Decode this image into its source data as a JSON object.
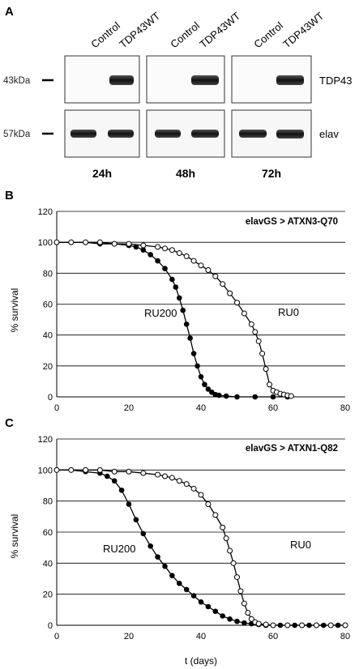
{
  "panel_a": {
    "letter": "A",
    "lane_labels": [
      "Control",
      "TDP43WT",
      "Control",
      "TDP43WT",
      "Control",
      "TDP43WT"
    ],
    "size_markers": [
      "43kDa",
      "57kDa"
    ],
    "proteins": [
      "TDP43",
      "elav"
    ],
    "timepoints": [
      "24h",
      "48h",
      "72h"
    ]
  },
  "chart_data": [
    {
      "type": "line",
      "panel": "B",
      "legend_text": "elavGS > ATXN3-Q70",
      "xlabel": "",
      "ylabel": "% survival",
      "xlim": [
        0,
        80
      ],
      "ylim": [
        0,
        120
      ],
      "xticks": [
        0,
        20,
        40,
        60,
        80
      ],
      "yticks": [
        0,
        20,
        40,
        60,
        80,
        100,
        120
      ],
      "grid": "horizontal",
      "series": [
        {
          "name": "RU200",
          "marker": "filled-circle",
          "points": [
            [
              0,
              100
            ],
            [
              4,
              100
            ],
            [
              8,
              100
            ],
            [
              12,
              99
            ],
            [
              16,
              99
            ],
            [
              20,
              98
            ],
            [
              22,
              97
            ],
            [
              24,
              95
            ],
            [
              26,
              92
            ],
            [
              28,
              88
            ],
            [
              30,
              83
            ],
            [
              32,
              76
            ],
            [
              33,
              71
            ],
            [
              34,
              64
            ],
            [
              35,
              56
            ],
            [
              36,
              47
            ],
            [
              37,
              38
            ],
            [
              38,
              28
            ],
            [
              39,
              20
            ],
            [
              40,
              13
            ],
            [
              41,
              8
            ],
            [
              42,
              5
            ],
            [
              43,
              3
            ],
            [
              44,
              1.5
            ],
            [
              45,
              1
            ],
            [
              47,
              0.5
            ],
            [
              50,
              0
            ],
            [
              55,
              0
            ],
            [
              60,
              0
            ],
            [
              64,
              0
            ]
          ]
        },
        {
          "name": "RU0",
          "marker": "open-circle",
          "points": [
            [
              0,
              100
            ],
            [
              4,
              100
            ],
            [
              8,
              100
            ],
            [
              12,
              100
            ],
            [
              16,
              99
            ],
            [
              20,
              99
            ],
            [
              24,
              98
            ],
            [
              28,
              97
            ],
            [
              30,
              96
            ],
            [
              32,
              95
            ],
            [
              34,
              93
            ],
            [
              36,
              91
            ],
            [
              38,
              88
            ],
            [
              40,
              85
            ],
            [
              42,
              82
            ],
            [
              44,
              78
            ],
            [
              46,
              73
            ],
            [
              48,
              67
            ],
            [
              50,
              61
            ],
            [
              52,
              54
            ],
            [
              54,
              47
            ],
            [
              55,
              42
            ],
            [
              56,
              36
            ],
            [
              57,
              28
            ],
            [
              58,
              18
            ],
            [
              59,
              8
            ],
            [
              60,
              4
            ],
            [
              61,
              3
            ],
            [
              62,
              2
            ],
            [
              63,
              1.5
            ],
            [
              64,
              1
            ],
            [
              65,
              0.5
            ]
          ]
        }
      ]
    },
    {
      "type": "line",
      "panel": "C",
      "legend_text": "elavGS > ATXN1-Q82",
      "xlabel": "t (days)",
      "ylabel": "% survival",
      "xlim": [
        0,
        80
      ],
      "ylim": [
        0,
        120
      ],
      "xticks": [
        0,
        20,
        40,
        60,
        80
      ],
      "yticks": [
        0,
        20,
        40,
        60,
        80,
        100,
        120
      ],
      "grid": "horizontal",
      "series": [
        {
          "name": "RU200",
          "marker": "filled-circle",
          "points": [
            [
              0,
              100
            ],
            [
              4,
              100
            ],
            [
              8,
              99
            ],
            [
              12,
              98
            ],
            [
              14,
              96
            ],
            [
              16,
              93
            ],
            [
              18,
              87
            ],
            [
              20,
              78
            ],
            [
              22,
              68
            ],
            [
              24,
              59
            ],
            [
              26,
              51
            ],
            [
              28,
              44
            ],
            [
              30,
              38
            ],
            [
              32,
              32
            ],
            [
              34,
              27
            ],
            [
              36,
              23
            ],
            [
              38,
              19
            ],
            [
              40,
              15
            ],
            [
              42,
              12
            ],
            [
              44,
              9
            ],
            [
              46,
              6
            ],
            [
              48,
              4
            ],
            [
              50,
              2.5
            ],
            [
              52,
              1.5
            ],
            [
              54,
              1
            ],
            [
              56,
              0.5
            ],
            [
              58,
              0
            ],
            [
              62,
              0
            ],
            [
              66,
              0
            ],
            [
              70,
              0
            ],
            [
              74,
              0
            ],
            [
              78,
              0
            ],
            [
              80,
              0
            ]
          ]
        },
        {
          "name": "RU0",
          "marker": "open-circle",
          "points": [
            [
              0,
              100
            ],
            [
              4,
              100
            ],
            [
              8,
              100
            ],
            [
              12,
              100
            ],
            [
              16,
              99
            ],
            [
              20,
              99
            ],
            [
              24,
              98
            ],
            [
              28,
              97
            ],
            [
              30,
              96
            ],
            [
              32,
              95
            ],
            [
              34,
              93
            ],
            [
              36,
              91
            ],
            [
              38,
              88
            ],
            [
              40,
              84
            ],
            [
              42,
              78
            ],
            [
              44,
              71
            ],
            [
              46,
              63
            ],
            [
              47,
              56
            ],
            [
              48,
              48
            ],
            [
              49,
              40
            ],
            [
              50,
              31
            ],
            [
              51,
              22
            ],
            [
              52,
              14
            ],
            [
              53,
              8
            ],
            [
              54,
              4
            ],
            [
              55,
              2
            ],
            [
              56,
              1
            ],
            [
              58,
              0.5
            ],
            [
              60,
              0
            ],
            [
              64,
              0
            ],
            [
              68,
              0
            ],
            [
              72,
              0
            ],
            [
              76,
              0
            ],
            [
              80,
              0
            ]
          ]
        }
      ]
    }
  ]
}
